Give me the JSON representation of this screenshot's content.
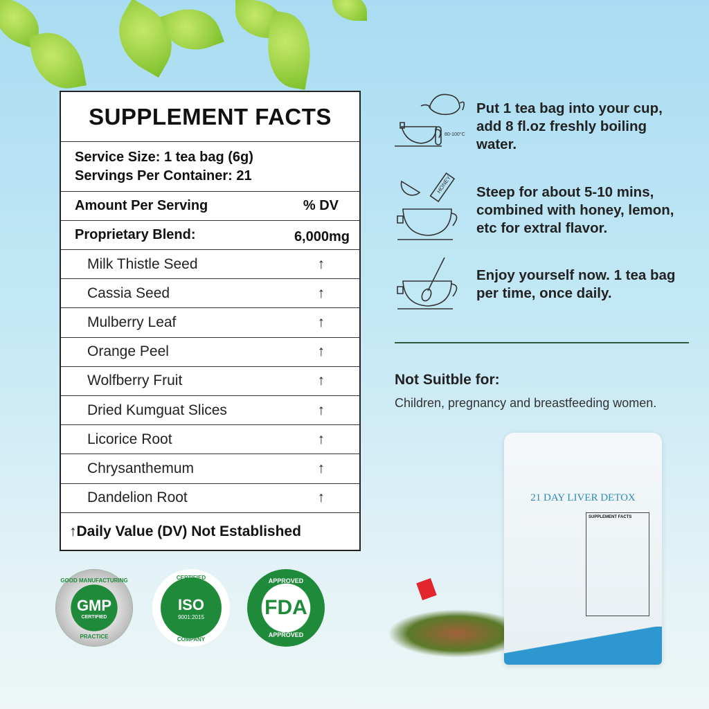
{
  "facts": {
    "title": "SUPPLEMENT FACTS",
    "serving_size": "Service Size: 1 tea bag (6g)",
    "servings_per_container": "Servings Per Container: 21",
    "amount_label": "Amount Per Serving",
    "dv_label": "% DV",
    "blend_label": "Proprietary Blend:",
    "blend_amount": "6,000mg",
    "ingredients": [
      {
        "name": "Milk Thistle Seed",
        "dv": "↑"
      },
      {
        "name": "Cassia Seed",
        "dv": "↑"
      },
      {
        "name": "Mulberry Leaf",
        "dv": "↑"
      },
      {
        "name": "Orange Peel",
        "dv": "↑"
      },
      {
        "name": "Wolfberry Fruit",
        "dv": "↑"
      },
      {
        "name": "Dried Kumguat Slices",
        "dv": "↑"
      },
      {
        "name": "Licorice Root",
        "dv": "↑"
      },
      {
        "name": "Chrysanthemum",
        "dv": "↑"
      },
      {
        "name": "Dandelion Root",
        "dv": "↑"
      }
    ],
    "footnote": "↑Daily Value (DV) Not Established"
  },
  "steps": [
    {
      "icon": "teapot-pour-icon",
      "text": "Put 1 tea bag into your cup, add 8 fl.oz freshly boiling water.",
      "temp": "80-100°C"
    },
    {
      "icon": "honey-lemon-cup-icon",
      "text": "Steep for about 5-10 mins, combined with honey, lemon, etc for extral flavor.",
      "honey": "HONEY"
    },
    {
      "icon": "stir-spoon-cup-icon",
      "text": "Enjoy yourself now. 1 tea bag per time, once daily."
    }
  ],
  "warning": {
    "title": "Not Suitble for:",
    "text": "Children, pregnancy and breastfeeding women."
  },
  "badges": [
    {
      "top": "GOOD MANUFACTURING",
      "main": "GMP",
      "sub": "CERTIFIED",
      "bottom": "PRACTICE"
    },
    {
      "top": "CERTIFIED",
      "main": "ISO",
      "sub": "9001:2015",
      "bottom": "COMPANY"
    },
    {
      "top": "APPROVED",
      "main": "FDA",
      "bottom": "APPROVED"
    }
  ],
  "package": {
    "title": "21 DAY LIVER DETOX",
    "label": "SUPPLEMENT FACTS"
  },
  "colors": {
    "badge_green": "#1f8a3a",
    "divider": "#2d5a3a"
  }
}
